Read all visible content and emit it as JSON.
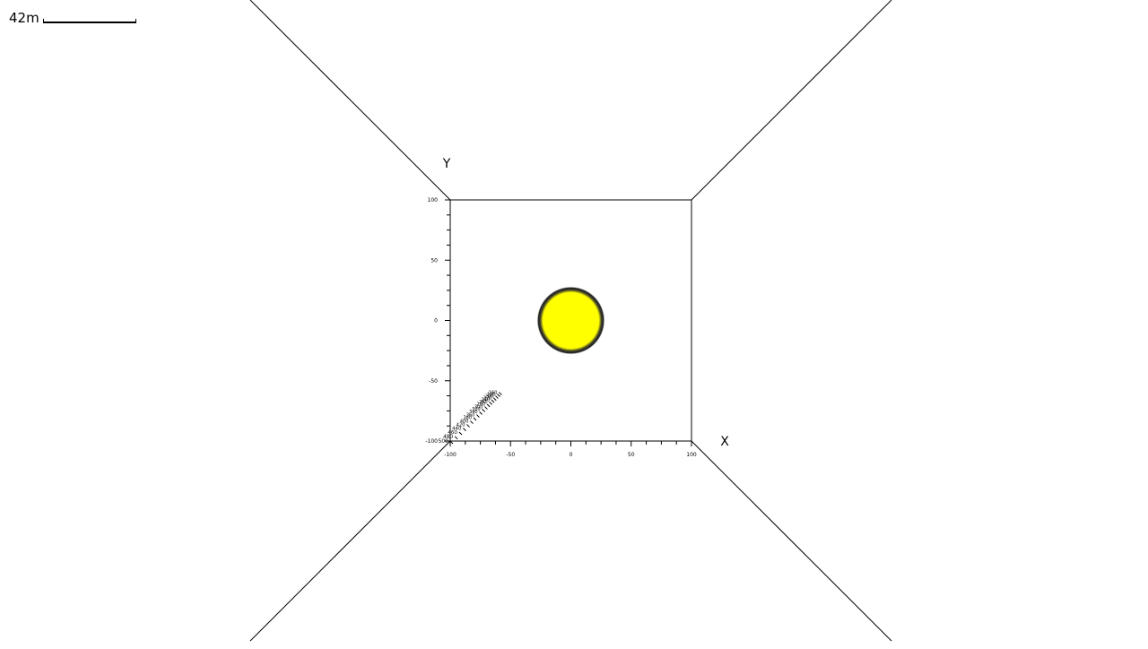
{
  "scale": {
    "label": "42m"
  },
  "axes": {
    "x_label": "X",
    "y_label": "Y",
    "x_ticks": [
      "-100",
      "-50",
      "0",
      "50",
      "100"
    ],
    "y_ticks": [
      "100",
      "50",
      "0",
      "-50",
      "-100"
    ],
    "z_ticks": [
      "500",
      "480",
      "460",
      "440",
      "420",
      "400",
      "380",
      "360",
      "340",
      "320",
      "300",
      "280",
      "260",
      "240",
      "220",
      "200",
      "180",
      "160"
    ]
  },
  "object": {
    "type": "sphere",
    "fill_color": "#ffff00",
    "outline_color": "#1a1a1a",
    "center": {
      "x": 0,
      "y": 0
    }
  },
  "colors": {
    "lines": "#000000",
    "background": "#ffffff"
  }
}
